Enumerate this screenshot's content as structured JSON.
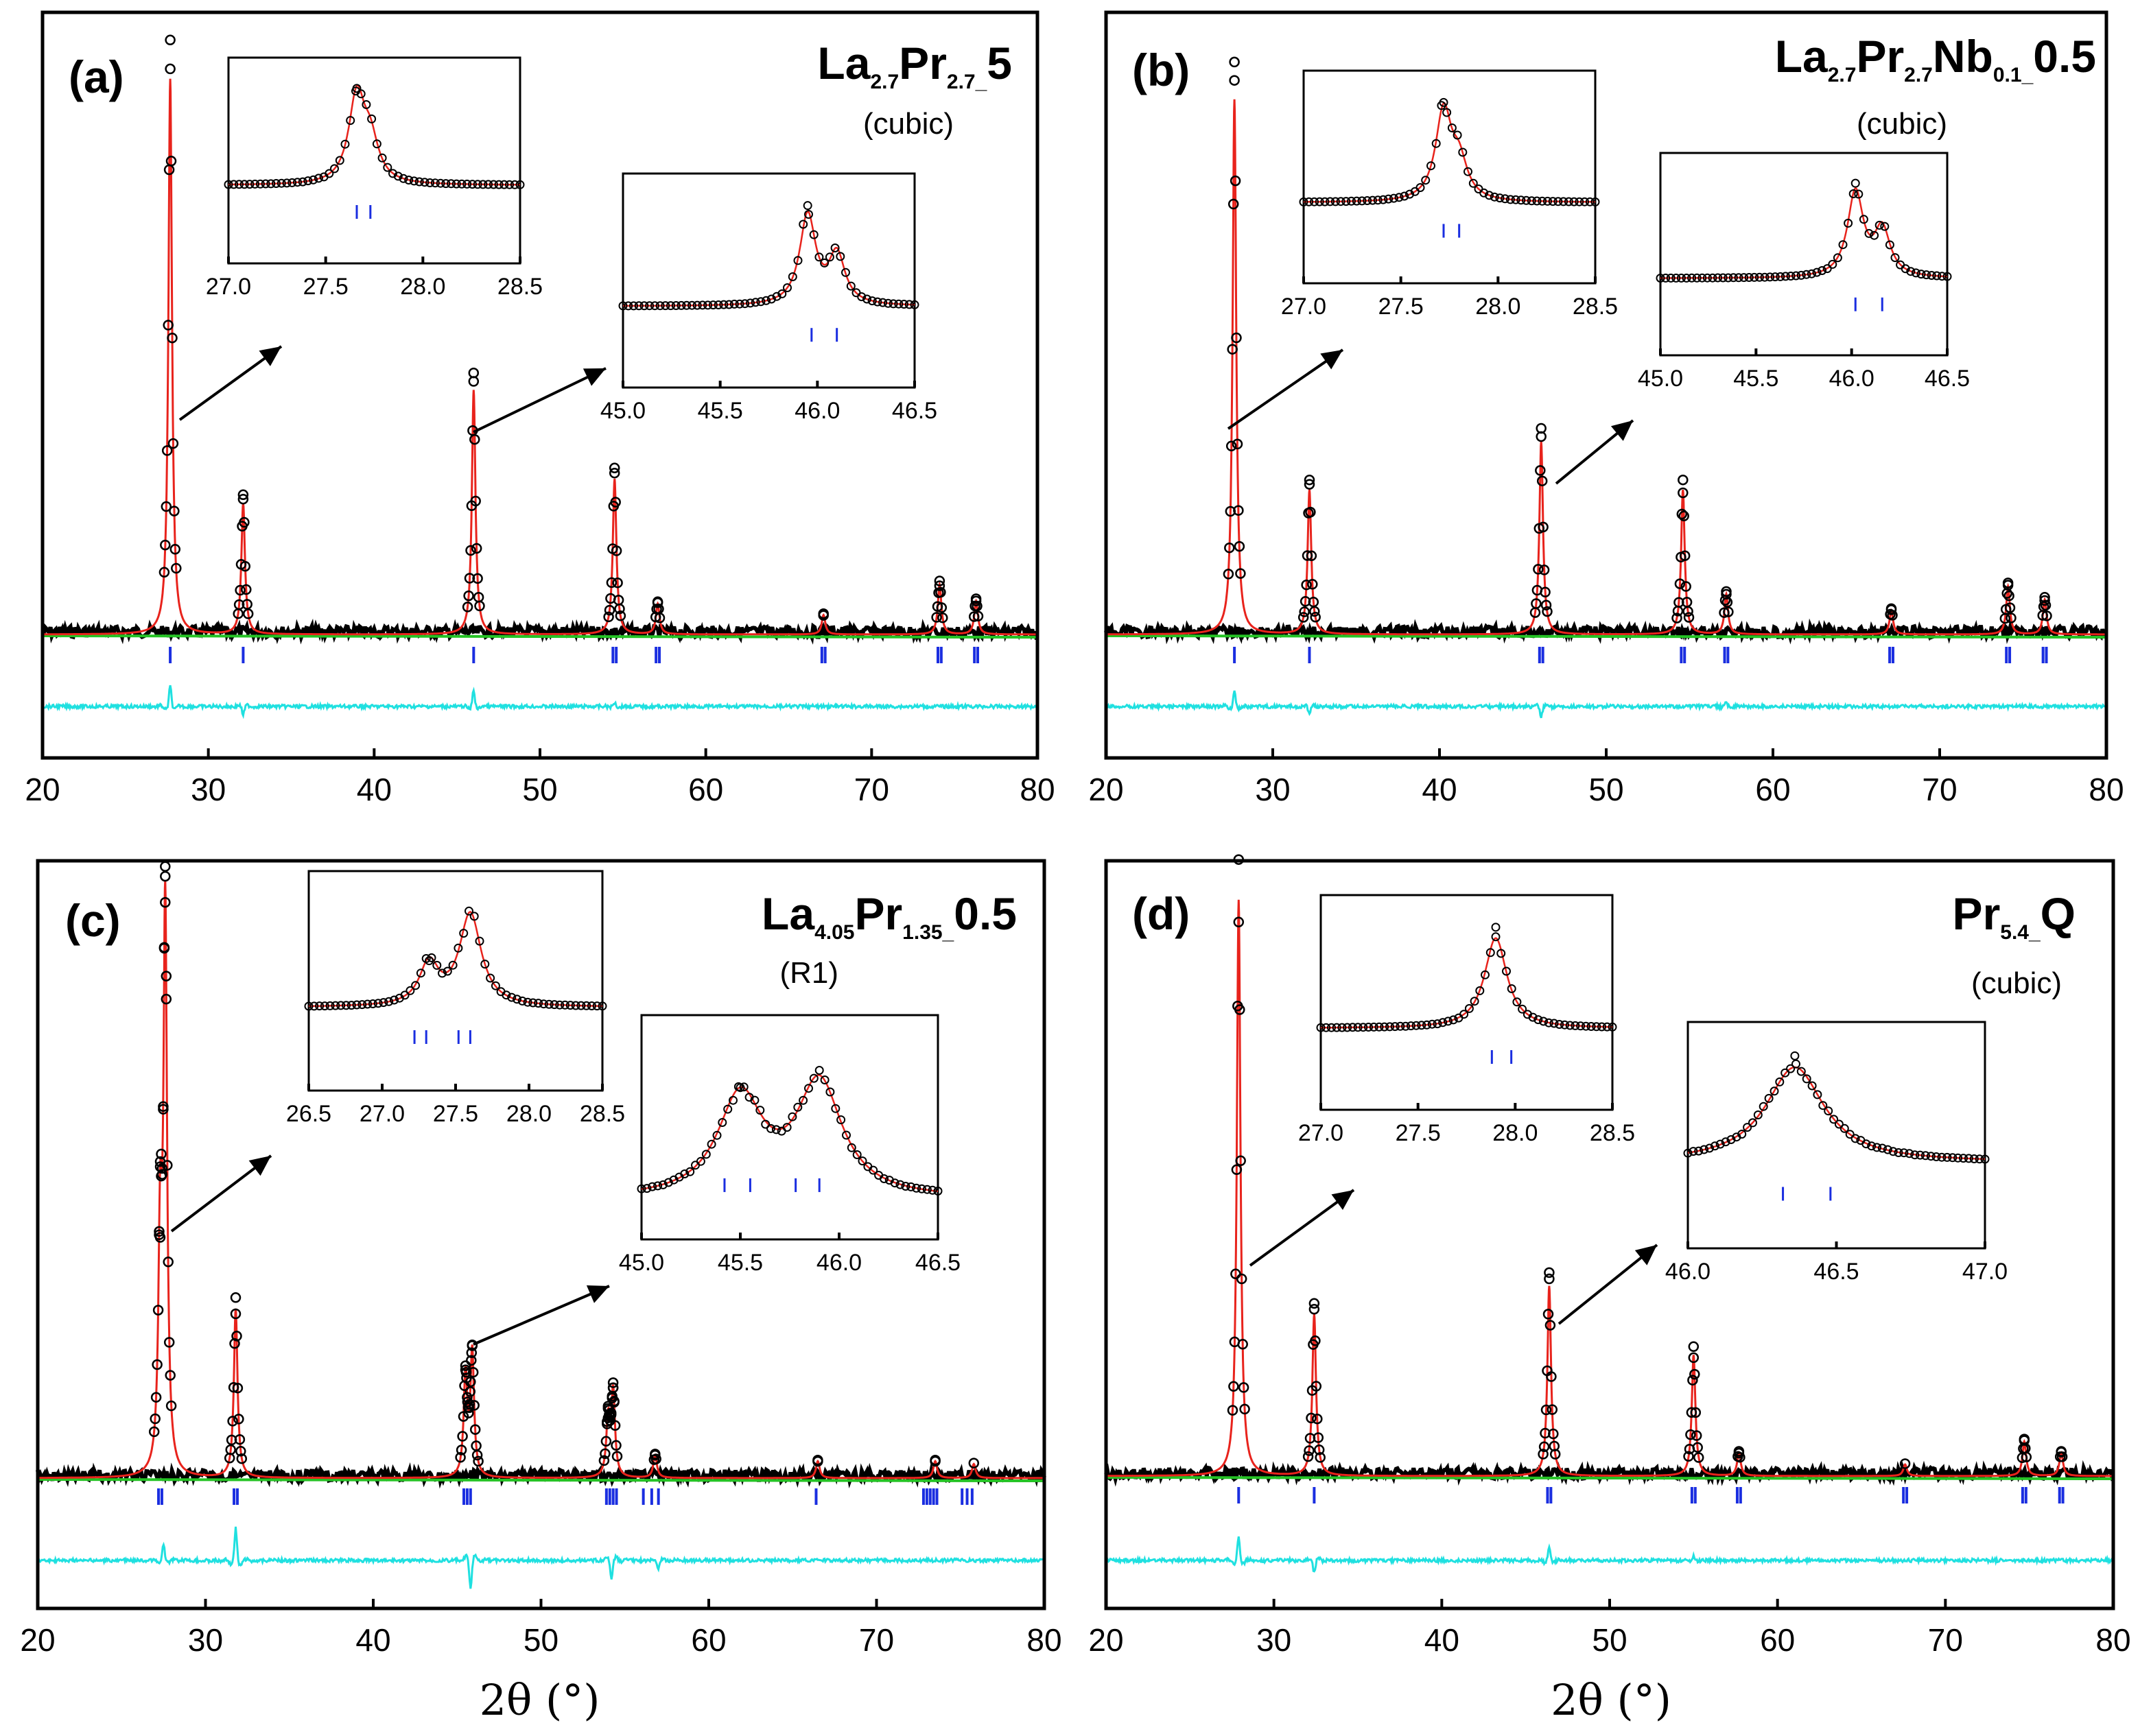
{
  "chart_data": [
    {
      "type": "line",
      "panel_label": "(a)",
      "title": "La2.7Pr2.7_5",
      "title_parts": {
        "base1": "La",
        "sub1": "2.7",
        "base2": "Pr",
        "sub2": "2.7_",
        "tail": "5"
      },
      "phase": "(cubic)",
      "x_range": [
        20,
        80
      ],
      "x_ticks": [
        "20",
        "30",
        "40",
        "50",
        "60",
        "70",
        "80"
      ],
      "xlabel": "",
      "series": [
        {
          "name": "Observed",
          "style": "open circles"
        },
        {
          "name": "Calculated",
          "color": "#e8231c"
        },
        {
          "name": "Background",
          "color": "#25c325"
        },
        {
          "name": "Bragg positions",
          "color": "#1a2ee0"
        },
        {
          "name": "Difference",
          "color": "#1fe0e0"
        }
      ],
      "peaks": [
        {
          "x": 27.7,
          "h": 1.0
        },
        {
          "x": 32.1,
          "h": 0.235
        },
        {
          "x": 46.0,
          "h": 0.44
        },
        {
          "x": 54.5,
          "h": 0.28
        },
        {
          "x": 57.1,
          "h": 0.055
        },
        {
          "x": 67.1,
          "h": 0.035
        },
        {
          "x": 74.1,
          "h": 0.09
        },
        {
          "x": 76.3,
          "h": 0.06
        }
      ],
      "bragg_marks": [
        27.7,
        32.1,
        46.0,
        54.4,
        54.6,
        57.0,
        57.2,
        67.0,
        67.2,
        74.0,
        74.2,
        76.2,
        76.4
      ],
      "diff_peaks": [
        {
          "x": 27.7,
          "h": 0.05
        },
        {
          "x": 32.1,
          "h": -0.02
        },
        {
          "x": 46.0,
          "h": 0.04
        },
        {
          "x": 54.5,
          "h": 0.01
        }
      ],
      "insets": [
        {
          "x_range": [
            27.0,
            28.5
          ],
          "x_ticks": [
            "27.0",
            "27.5",
            "28.0",
            "28.5"
          ],
          "peaks": [
            {
              "x": 27.66,
              "h": 1.0,
              "w": 0.05
            },
            {
              "x": 27.73,
              "h": 0.45,
              "w": 0.05
            }
          ],
          "bragg_marks": [
            27.66,
            27.73
          ]
        },
        {
          "x_range": [
            45.0,
            46.5
          ],
          "x_ticks": [
            "45.0",
            "45.5",
            "46.0",
            "46.5"
          ],
          "peaks": [
            {
              "x": 45.95,
              "h": 1.0,
              "w": 0.05
            },
            {
              "x": 46.1,
              "h": 0.55,
              "w": 0.05
            }
          ],
          "bragg_marks": [
            45.97,
            46.1
          ]
        }
      ]
    },
    {
      "type": "line",
      "panel_label": "(b)",
      "title": "La2.7Pr2.7Nb0.1_0.5",
      "title_parts": {
        "base1": "La",
        "sub1": "2.7",
        "base2": "Pr",
        "sub2": "2.7",
        "base3": "Nb",
        "sub3": "0.1_",
        "tail": "0.5"
      },
      "phase": "(cubic)",
      "x_range": [
        20,
        80
      ],
      "x_ticks": [
        "20",
        "30",
        "40",
        "50",
        "60",
        "70",
        "80"
      ],
      "xlabel": "",
      "series": [
        {
          "name": "Observed",
          "style": "open circles"
        },
        {
          "name": "Calculated",
          "color": "#e8231c"
        },
        {
          "name": "Background",
          "color": "#25c325"
        },
        {
          "name": "Bragg positions",
          "color": "#1a2ee0"
        },
        {
          "name": "Difference",
          "color": "#1fe0e0"
        }
      ],
      "peaks": [
        {
          "x": 27.7,
          "h": 1.0
        },
        {
          "x": 32.2,
          "h": 0.27
        },
        {
          "x": 46.1,
          "h": 0.36
        },
        {
          "x": 54.6,
          "h": 0.27
        },
        {
          "x": 57.2,
          "h": 0.075
        },
        {
          "x": 67.1,
          "h": 0.045
        },
        {
          "x": 74.1,
          "h": 0.09
        },
        {
          "x": 76.3,
          "h": 0.065
        }
      ],
      "bragg_marks": [
        27.7,
        32.2,
        46.0,
        46.2,
        54.5,
        54.7,
        57.1,
        57.3,
        67.0,
        67.2,
        74.0,
        74.2,
        76.2,
        76.4
      ],
      "diff_peaks": [
        {
          "x": 27.7,
          "h": 0.04
        },
        {
          "x": 32.2,
          "h": -0.02
        },
        {
          "x": 46.1,
          "h": -0.025
        },
        {
          "x": 57.2,
          "h": 0.01
        }
      ],
      "insets": [
        {
          "x_range": [
            27.0,
            28.5
          ],
          "x_ticks": [
            "27.0",
            "27.5",
            "28.0",
            "28.5"
          ],
          "peaks": [
            {
              "x": 27.72,
              "h": 1.0,
              "w": 0.05
            },
            {
              "x": 27.8,
              "h": 0.4,
              "w": 0.05
            }
          ],
          "bragg_marks": [
            27.72,
            27.8
          ]
        },
        {
          "x_range": [
            45.0,
            46.5
          ],
          "x_ticks": [
            "45.0",
            "45.5",
            "46.0",
            "46.5"
          ],
          "peaks": [
            {
              "x": 46.02,
              "h": 1.0,
              "w": 0.05
            },
            {
              "x": 46.16,
              "h": 0.55,
              "w": 0.05
            }
          ],
          "bragg_marks": [
            46.02,
            46.16
          ]
        }
      ]
    },
    {
      "type": "line",
      "panel_label": "(c)",
      "title": "La4.05Pr1.35_0.5",
      "title_parts": {
        "base1": "La",
        "sub1": "4.05",
        "base2": "Pr",
        "sub2": "1.35_",
        "tail": "0.5"
      },
      "phase": "(R1)",
      "x_range": [
        20,
        80
      ],
      "x_ticks": [
        "20",
        "30",
        "40",
        "50",
        "60",
        "70",
        "80"
      ],
      "xlabel": "2θ (°)",
      "series": [
        {
          "name": "Observed",
          "style": "open circles"
        },
        {
          "name": "Calculated",
          "color": "#e8231c"
        },
        {
          "name": "Background",
          "color": "#25c325"
        },
        {
          "name": "Bragg positions",
          "color": "#1a2ee0"
        },
        {
          "name": "Difference",
          "color": "#1fe0e0"
        }
      ],
      "peaks": [
        {
          "x": 27.3,
          "h": 0.4
        },
        {
          "x": 27.6,
          "h": 1.0
        },
        {
          "x": 31.8,
          "h": 0.3
        },
        {
          "x": 45.5,
          "h": 0.18
        },
        {
          "x": 45.9,
          "h": 0.22
        },
        {
          "x": 54.0,
          "h": 0.1
        },
        {
          "x": 54.3,
          "h": 0.15
        },
        {
          "x": 56.8,
          "h": 0.04
        },
        {
          "x": 66.5,
          "h": 0.03
        },
        {
          "x": 73.5,
          "h": 0.03
        },
        {
          "x": 75.8,
          "h": 0.025
        }
      ],
      "bragg_marks": [
        27.2,
        27.4,
        31.7,
        31.9,
        45.4,
        45.6,
        45.8,
        53.9,
        54.1,
        54.3,
        54.5,
        56.1,
        56.6,
        57.0,
        66.4,
        72.8,
        73.0,
        73.2,
        73.4,
        73.6,
        75.1,
        75.4,
        75.7
      ],
      "diff_peaks": [
        {
          "x": 27.5,
          "h": 0.04
        },
        {
          "x": 31.8,
          "h": 0.08
        },
        {
          "x": 45.8,
          "h": -0.07
        },
        {
          "x": 54.2,
          "h": -0.05
        },
        {
          "x": 57.0,
          "h": -0.02
        }
      ],
      "insets": [
        {
          "x_range": [
            26.5,
            28.5
          ],
          "x_ticks": [
            "26.5",
            "27.0",
            "27.5",
            "28.0",
            "28.5"
          ],
          "peaks": [
            {
              "x": 27.32,
              "h": 0.45,
              "w": 0.08
            },
            {
              "x": 27.6,
              "h": 1.0,
              "w": 0.09
            }
          ],
          "bragg_marks": [
            27.22,
            27.3,
            27.52,
            27.6
          ]
        },
        {
          "x_range": [
            45.0,
            46.5
          ],
          "x_ticks": [
            "45.0",
            "45.5",
            "46.0",
            "46.5"
          ],
          "peaks": [
            {
              "x": 45.5,
              "h": 0.88,
              "w": 0.14
            },
            {
              "x": 45.9,
              "h": 1.0,
              "w": 0.14
            }
          ],
          "bragg_marks": [
            45.42,
            45.55,
            45.78,
            45.9
          ]
        }
      ]
    },
    {
      "type": "line",
      "panel_label": "(d)",
      "title": "Pr5.4_Q",
      "title_parts": {
        "base1": "Pr",
        "sub1": "5.4_",
        "tail": "Q"
      },
      "phase": "(cubic)",
      "x_range": [
        20,
        80
      ],
      "x_ticks": [
        "20",
        "30",
        "40",
        "50",
        "60",
        "70",
        "80"
      ],
      "xlabel": "2θ (°)",
      "series": [
        {
          "name": "Observed",
          "style": "open circles"
        },
        {
          "name": "Calculated",
          "color": "#e8231c"
        },
        {
          "name": "Background",
          "color": "#25c325"
        },
        {
          "name": "Bragg positions",
          "color": "#1a2ee0"
        },
        {
          "name": "Difference",
          "color": "#1fe0e0"
        }
      ],
      "peaks": [
        {
          "x": 27.9,
          "h": 1.0
        },
        {
          "x": 32.4,
          "h": 0.28
        },
        {
          "x": 46.4,
          "h": 0.33
        },
        {
          "x": 55.0,
          "h": 0.21
        },
        {
          "x": 57.7,
          "h": 0.04
        },
        {
          "x": 67.6,
          "h": 0.02
        },
        {
          "x": 74.7,
          "h": 0.06
        },
        {
          "x": 76.9,
          "h": 0.04
        }
      ],
      "bragg_marks": [
        27.9,
        32.4,
        46.3,
        46.5,
        54.9,
        55.1,
        57.6,
        57.8,
        67.5,
        67.7,
        74.6,
        74.8,
        76.8,
        77.0
      ],
      "diff_peaks": [
        {
          "x": 27.9,
          "h": 0.06
        },
        {
          "x": 32.4,
          "h": -0.03
        },
        {
          "x": 46.4,
          "h": 0.03
        },
        {
          "x": 55.0,
          "h": 0.01
        }
      ],
      "insets": [
        {
          "x_range": [
            27.0,
            28.5
          ],
          "x_ticks": [
            "27.0",
            "27.5",
            "28.0",
            "28.5"
          ],
          "peaks": [
            {
              "x": 27.9,
              "h": 1.0,
              "w": 0.07
            }
          ],
          "bragg_marks": [
            27.88,
            27.98
          ]
        },
        {
          "x_range": [
            46.0,
            47.0
          ],
          "x_ticks": [
            "46.0",
            "46.5",
            "47.0"
          ],
          "peaks": [
            {
              "x": 46.36,
              "h": 1.0,
              "w": 0.12
            }
          ],
          "bragg_marks": [
            46.32,
            46.48
          ]
        }
      ]
    }
  ]
}
